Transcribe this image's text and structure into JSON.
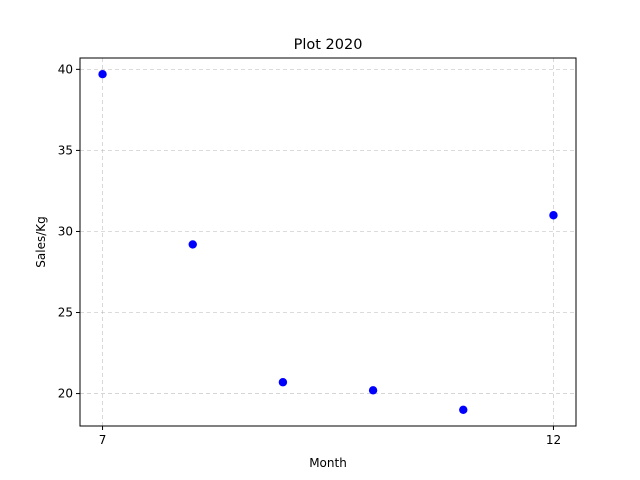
{
  "chart_data": {
    "type": "scatter",
    "title": "Plot 2020",
    "xlabel": "Month",
    "ylabel": "Sales/Kg",
    "x": [
      7,
      8,
      9,
      10,
      11,
      12
    ],
    "y": [
      39.7,
      29.2,
      20.7,
      20.2,
      19.0,
      31.0
    ],
    "xlim": [
      6.75,
      12.25
    ],
    "ylim": [
      18.0,
      40.7
    ],
    "xticks": [
      7,
      12
    ],
    "yticks": [
      20,
      25,
      30,
      35,
      40
    ],
    "grid": true,
    "marker_color": "#0000ff",
    "grid_color": "#b0b0b0"
  }
}
